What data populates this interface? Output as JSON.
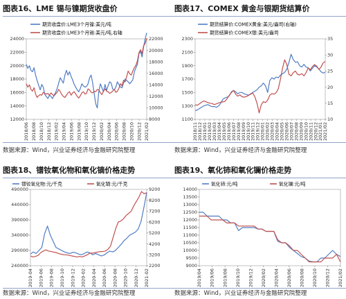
{
  "chart_data": [
    {
      "type": "line",
      "title": "图表16、LME 锡与镍期货收盘价",
      "source": "数据来源：Wind，兴业证券经济与金融研究院整理",
      "x_ticks": [
        "2018/06",
        "2018/08",
        "2018/10",
        "2018/12",
        "2019/02",
        "2019/04",
        "2019/06",
        "2019/08",
        "2019/10",
        "2019/12",
        "2020/02",
        "2020/04",
        "2020/06",
        "2020/08",
        "2020/10",
        "2020/12",
        "2021/02"
      ],
      "ylim_left": [
        12000,
        24000
      ],
      "ylim_left_step": 2000,
      "ylim_right": [
        8000,
        22000
      ],
      "ylim_right_step": 2000,
      "series": [
        {
          "name": "期货收盘价:LME3个月镍:美元/吨",
          "axis": "left",
          "color": "#4f7cc5",
          "values": [
            20200,
            19600,
            20000,
            19300,
            19100,
            19700,
            18600,
            17800,
            17100,
            16400,
            17200,
            16800,
            15700,
            15400,
            15100,
            15600,
            15400,
            15100,
            15600,
            16000,
            16600,
            17400,
            18200,
            17800,
            17400,
            18600,
            19300,
            18600,
            19100,
            18400,
            17900,
            17200,
            16800,
            16400,
            16100,
            16600,
            17300,
            17000,
            16800,
            16900,
            17300,
            18200,
            18600,
            17400,
            15800,
            14300,
            13700,
            16200,
            17300,
            16700,
            16100,
            17200,
            16300,
            17000,
            17600,
            17400,
            16500,
            16400,
            16800,
            17600,
            17200,
            16800,
            16700,
            17400,
            18000,
            17800,
            17600,
            17300,
            17600,
            17900,
            19100,
            19700,
            20200,
            21800,
            22100,
            21300,
            22800,
            24000,
            24900
          ]
        },
        {
          "name": "期货收盘价:LME3个月锡:美元/吨,右轴",
          "axis": "right",
          "color": "#c0504d",
          "values": [
            14200,
            13600,
            14000,
            13200,
            12900,
            13500,
            12400,
            11800,
            12100,
            12300,
            12200,
            12700,
            12500,
            12400,
            12500,
            12200,
            12600,
            12300,
            12100,
            12400,
            12700,
            13200,
            12800,
            12300,
            12000,
            11800,
            12200,
            12600,
            12800,
            12200,
            12600,
            12800,
            12400,
            12000,
            11700,
            12100,
            12600,
            12800,
            12400,
            12500,
            13300,
            13100,
            12700,
            12600,
            12900,
            12800,
            13200,
            13100,
            12600,
            12300,
            12900,
            13300,
            12900,
            12800,
            12500,
            12700,
            12900,
            13200,
            12700,
            12900,
            13400,
            14200,
            13800,
            14800,
            14500,
            15400,
            16400,
            15900,
            15700,
            16400,
            17000,
            17400,
            18200,
            19600,
            20100,
            19400,
            20800,
            21200,
            22100
          ]
        }
      ]
    },
    {
      "type": "line",
      "title": "图表17、COMEX 黄金与银期货结算价",
      "source": "数据来源：Wind，兴业证券经济与金融研究院整理",
      "x_ticks": [
        "2018/11",
        "2018/12",
        "2019/01",
        "2019/02",
        "2019/03",
        "2019/04",
        "2019/05",
        "2019/06",
        "2019/07",
        "2019/08",
        "2019/09",
        "2019/10",
        "2019/11",
        "2019/12",
        "2020/01",
        "2020/02",
        "2020/03",
        "2020/04",
        "2020/05",
        "2020/06",
        "2020/07",
        "2020/08",
        "2020/09",
        "2020/10",
        "2020/11",
        "2020/12",
        "2021/01",
        "2021/02"
      ],
      "ylim_left": [
        1100,
        2300
      ],
      "ylim_left_step": 200,
      "ylim_right": [
        10,
        35
      ],
      "ylim_right_step": 5,
      "series": [
        {
          "name": "期货结算价:COMEX黄金:美元/盎司(右轴)",
          "axis": "left",
          "color": "#4f7cc5",
          "values": [
            1230,
            1240,
            1260,
            1280,
            1300,
            1310,
            1320,
            1300,
            1290,
            1290,
            1280,
            1300,
            1340,
            1400,
            1420,
            1430,
            1450,
            1510,
            1530,
            1510,
            1480,
            1500,
            1500,
            1480,
            1470,
            1460,
            1480,
            1500,
            1520,
            1540,
            1580,
            1600,
            1640,
            1600,
            1500,
            1680,
            1720,
            1700,
            1730,
            1720,
            1760,
            1780,
            1800,
            1850,
            1950,
            2070,
            1990,
            1950,
            1960,
            1900,
            1880,
            1920,
            1880,
            1870,
            1820,
            1860,
            1900,
            1880,
            1850,
            1810,
            1790,
            1800
          ]
        },
        {
          "name": "期货结算价:COMEX银:美元/盎司",
          "axis": "right",
          "color": "#c0504d",
          "values": [
            14.5,
            14.4,
            14.8,
            15.3,
            15.7,
            15.5,
            15.2,
            15.0,
            14.9,
            14.6,
            14.8,
            15.1,
            15.3,
            15.4,
            15.6,
            16.4,
            17.5,
            18.3,
            19.0,
            17.8,
            17.2,
            17.6,
            17.0,
            16.9,
            17.1,
            17.4,
            17.8,
            18.2,
            17.0,
            15.0,
            12.0,
            14.5,
            15.5,
            15.2,
            16.0,
            17.5,
            18.0,
            17.8,
            18.3,
            19.5,
            22.5,
            26.0,
            28.5,
            27.0,
            24.0,
            23.5,
            24.5,
            25.0,
            24.0,
            23.8,
            24.2,
            23.5,
            24.5,
            26.0,
            25.4,
            26.4,
            27.0,
            26.5,
            25.5,
            26.2,
            27.5,
            28.0
          ]
        }
      ]
    },
    {
      "type": "line",
      "title": "图表18、镨钕氧化物和氧化镝价格走势",
      "source": "数据来源：Wind，兴业证券经济与金融研究院整理",
      "x_ticks": [
        "2019-04",
        "2019-06",
        "2019-08",
        "2019-10",
        "2019-12",
        "2020-02",
        "2020-04",
        "2020-06",
        "2020-08",
        "2020-10",
        "2020-12",
        "2021-02"
      ],
      "ylim_left": [
        240000,
        490000
      ],
      "ylim_left_ticks": [
        240000,
        290000,
        340000,
        390000,
        440000,
        490000
      ],
      "ylim_right": [
        2200,
        9200
      ],
      "ylim_right_ticks": [
        2200,
        3200,
        4200,
        5200,
        6200,
        7200,
        8200,
        9200
      ],
      "series": [
        {
          "name": "镨钕氧化物:元/千克",
          "axis": "left",
          "color": "#4f7cc5",
          "values": [
            278000,
            285000,
            280000,
            290000,
            300000,
            345000,
            370000,
            340000,
            320000,
            300000,
            295000,
            290000,
            285000,
            282000,
            280000,
            284000,
            282000,
            278000,
            276000,
            280000,
            285000,
            282000,
            276000,
            280000,
            276000,
            272000,
            275000,
            282000,
            288000,
            285000,
            290000,
            300000,
            310000,
            322000,
            330000,
            340000,
            345000,
            350000,
            360000,
            385000,
            430000,
            480000
          ]
        },
        {
          "name": "氧化镝:元/千克",
          "axis": "right",
          "color": "#c0504d",
          "values": [
            3100,
            3000,
            3050,
            3150,
            3400,
            3550,
            3650,
            3550,
            3500,
            3450,
            3400,
            3300,
            3250,
            3200,
            3200,
            3150,
            3100,
            3050,
            3000,
            3050,
            3000,
            3100,
            3200,
            3350,
            3350,
            3400,
            3450,
            3500,
            3500,
            3550,
            3700,
            4000,
            4800,
            5600,
            6200,
            6300,
            6500,
            6800,
            7000,
            7200,
            7700,
            8100,
            8500,
            9000,
            8800,
            8900
          ]
        }
      ]
    },
    {
      "type": "line",
      "title": "图表19、氧化铈和氧化镧价格走势",
      "source": "数据来源：Wind，兴业证券经济与金融研究院整理",
      "x_ticks": [
        "2019/04",
        "2019/06",
        "2019/08",
        "2019/10",
        "2019/12",
        "2020/02",
        "2020/04",
        "2020/06",
        "2020/08",
        "2020/10",
        "2020/12",
        "2021/02"
      ],
      "ylim_left": [
        9000,
        14000
      ],
      "ylim_left_step": 500,
      "series": [
        {
          "name": "氧化铈:元/吨",
          "axis": "left",
          "color": "#4f7cc5",
          "values": [
            12500,
            12500,
            12250,
            12250,
            12250,
            12250,
            12000,
            12000,
            11800,
            11800,
            11300,
            11500,
            11500,
            11500,
            11500,
            11400,
            11400,
            11250,
            11250,
            11250,
            10600,
            10500,
            10500,
            10200,
            10000,
            9800,
            9600,
            9500,
            9300,
            9250,
            9250,
            9500,
            9500,
            9750,
            10000,
            9750,
            9600
          ]
        },
        {
          "name": "氧化镧:元/吨",
          "axis": "left",
          "color": "#c0504d",
          "values": [
            12250,
            12250,
            12250,
            12000,
            12000,
            12000,
            12000,
            11800,
            11800,
            11800,
            11600,
            11600,
            11600,
            11600,
            11600,
            11400,
            11400,
            11250,
            11250,
            11250,
            10700,
            10500,
            10500,
            10300,
            10000,
            10000,
            9750,
            9500,
            9250,
            9250,
            9250,
            9250,
            9500,
            9500,
            9500,
            9750,
            9250
          ]
        }
      ]
    }
  ]
}
